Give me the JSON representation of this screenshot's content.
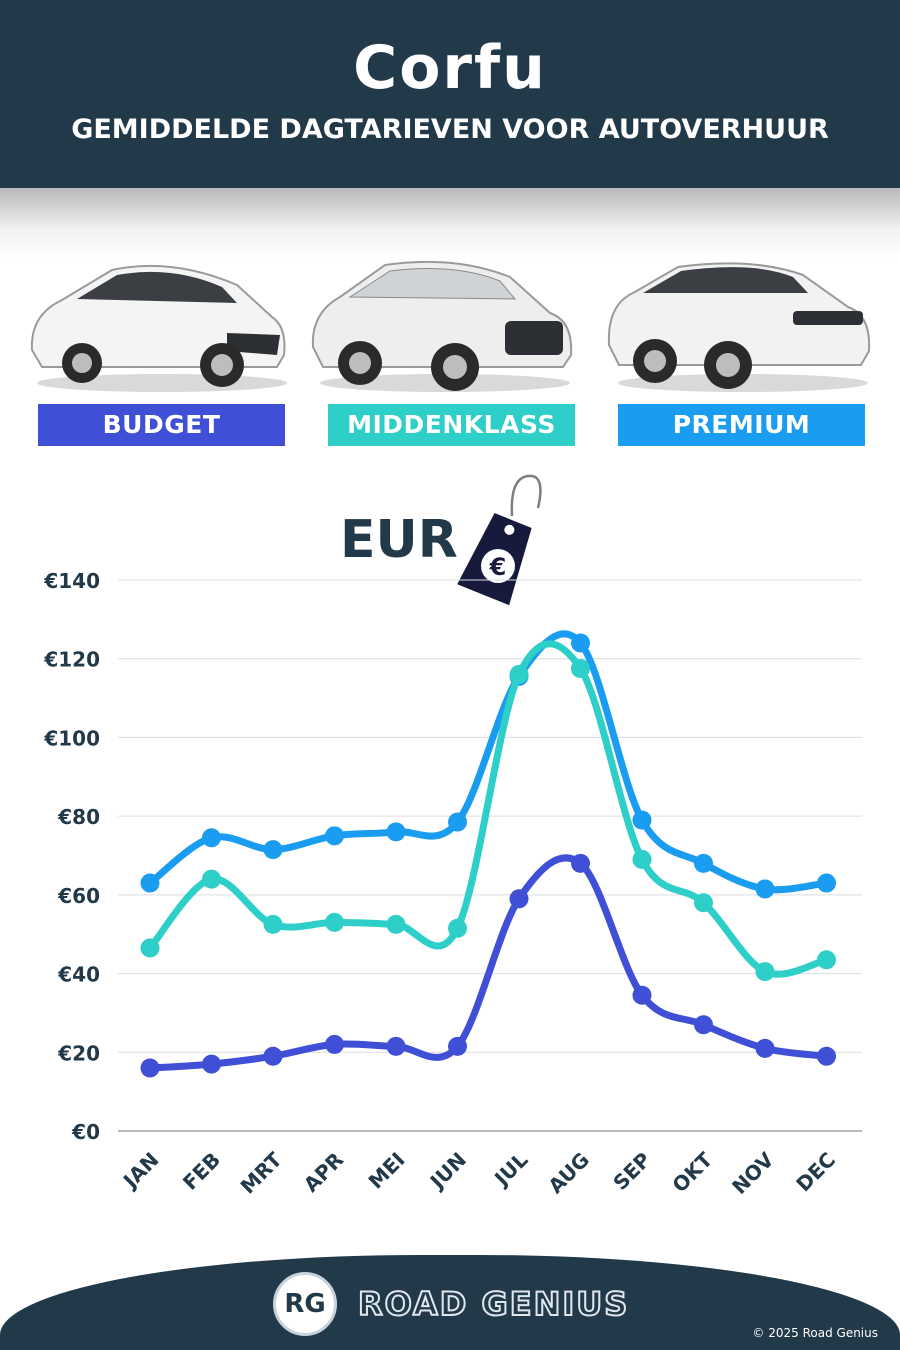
{
  "header": {
    "title": "Corfu",
    "subtitle": "GEMIDDELDE DAGTARIEVEN VOOR AUTOVERHUUR"
  },
  "categories": [
    {
      "label": "BUDGET",
      "color": "#3f4fd6"
    },
    {
      "label": "MIDDENKLASS",
      "color": "#2dcfc8"
    },
    {
      "label": "PREMIUM",
      "color": "#1a9cf0"
    }
  ],
  "currency_label": "EUR",
  "tag_symbol": "€",
  "chart_data": {
    "type": "line",
    "x": [
      "JAN",
      "FEB",
      "MRT",
      "APR",
      "MEI",
      "JUN",
      "JUL",
      "AUG",
      "SEP",
      "OKT",
      "NOV",
      "DEC"
    ],
    "y_ticks": [
      "€0",
      "€20",
      "€40",
      "€60",
      "€80",
      "€100",
      "€120",
      "€140"
    ],
    "ylim": [
      0,
      140
    ],
    "grid": true,
    "series": [
      {
        "name": "BUDGET",
        "color": "#3f4fd6",
        "values": [
          16,
          17,
          19,
          22,
          21.5,
          21.5,
          59,
          68,
          34.5,
          27,
          21,
          19
        ]
      },
      {
        "name": "MIDDENKLASS",
        "color": "#2dcfc8",
        "values": [
          46.5,
          64,
          52.5,
          53,
          52.5,
          51.5,
          116,
          117.5,
          69,
          58,
          40.5,
          43.5
        ]
      },
      {
        "name": "PREMIUM",
        "color": "#1a9cf0",
        "values": [
          63,
          74.5,
          71.5,
          75,
          76,
          78.5,
          115.5,
          124,
          79,
          68,
          61.5,
          63
        ]
      }
    ]
  },
  "footer": {
    "logo_mark": "RG",
    "brand": "ROAD GENIUS",
    "copyright": "© 2025 Road Genius"
  }
}
